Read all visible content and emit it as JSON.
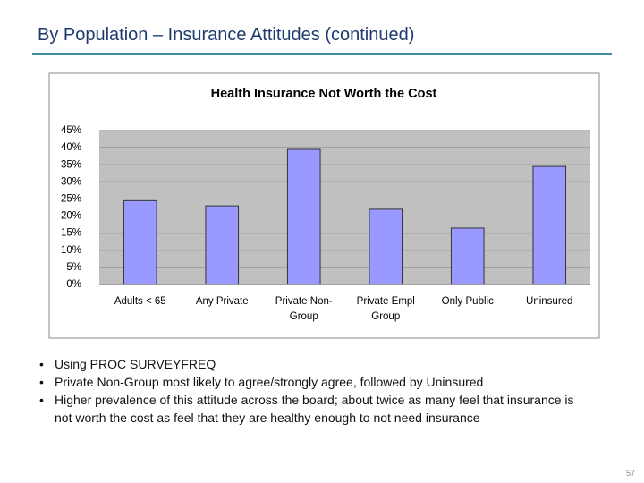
{
  "slide_title": "By Population – Insurance Attitudes (continued)",
  "chart_data": {
    "type": "bar",
    "title": "Health Insurance Not Worth the Cost",
    "categories": [
      "Adults < 65",
      "Any Private",
      "Private Non-Group",
      "Private Empl Group",
      "Only Public",
      "Uninsured"
    ],
    "values": [
      24.5,
      23,
      39.5,
      22,
      16.5,
      34.5
    ],
    "color": "#9999ff",
    "ylim": [
      0,
      45
    ],
    "yticks": [
      {
        "value": 0,
        "label": "0%"
      },
      {
        "value": 5,
        "label": "5%"
      },
      {
        "value": 10,
        "label": "10%"
      },
      {
        "value": 15,
        "label": "15%"
      },
      {
        "value": 20,
        "label": "20%"
      },
      {
        "value": 25,
        "label": "25%"
      },
      {
        "value": 30,
        "label": "30%"
      },
      {
        "value": 35,
        "label": "35%"
      },
      {
        "value": 40,
        "label": "40%"
      },
      {
        "value": 45,
        "label": "45%"
      }
    ],
    "grid": true
  },
  "bullets": [
    "Using PROC SURVEYFREQ",
    "Private Non-Group most likely to agree/strongly agree, followed by Uninsured",
    "Higher prevalence of this attitude across the board; about twice as many feel that insurance is not worth the cost as feel that they are healthy enough to not need insurance"
  ],
  "page_number": "57"
}
